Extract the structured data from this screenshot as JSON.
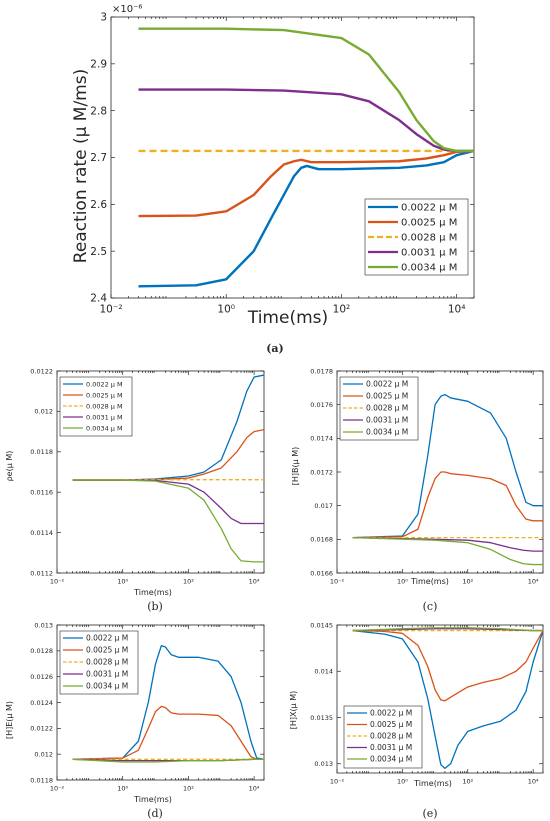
{
  "legend_entries": [
    "0.0022 μ M",
    "0.0025 μ M",
    "0.0028  μ M",
    "0.0031 μ M",
    "0.0034 μ M"
  ],
  "series_colors": [
    "#0072BD",
    "#D95319",
    "#EDB120",
    "#7E2F8E",
    "#77AC30"
  ],
  "chart_data": [
    {
      "panel": "a",
      "caption": "(a)",
      "type": "line",
      "xscale": "log",
      "xlim": [
        0.01,
        20000
      ],
      "ylim": [
        2.4,
        3.0
      ],
      "exponent_label": "×10⁻⁶",
      "xlabel": "Time(ms)",
      "ylabel": "Reaction rate (μ M/ms)",
      "xticks": [
        {
          "v": 0.01,
          "label": "10⁻²"
        },
        {
          "v": 1,
          "label": "10⁰"
        },
        {
          "v": 100,
          "label": "10²"
        },
        {
          "v": 10000,
          "label": "10⁴"
        }
      ],
      "yticks": [
        {
          "v": 2.4,
          "label": "2.4"
        },
        {
          "v": 2.5,
          "label": "2.5"
        },
        {
          "v": 2.6,
          "label": "2.6"
        },
        {
          "v": 2.7,
          "label": "2.7"
        },
        {
          "v": 2.8,
          "label": "2.8"
        },
        {
          "v": 2.9,
          "label": "2.9"
        },
        {
          "v": 3.0,
          "label": "3"
        }
      ],
      "legend_position": "bottom-right",
      "series": [
        {
          "name": "0.0022 μ M",
          "x": [
            0.03,
            0.3,
            1,
            3,
            6,
            10,
            15,
            20,
            25,
            40,
            100,
            1000,
            3000,
            6000,
            10000,
            20000
          ],
          "y": [
            2.425,
            2.427,
            2.44,
            2.5,
            2.57,
            2.62,
            2.66,
            2.678,
            2.682,
            2.675,
            2.675,
            2.678,
            2.683,
            2.69,
            2.705,
            2.714
          ]
        },
        {
          "name": "0.0025 μ M",
          "x": [
            0.03,
            0.3,
            1,
            3,
            6,
            10,
            15,
            20,
            30,
            100,
            1000,
            3000,
            6000,
            10000,
            20000
          ],
          "y": [
            2.575,
            2.576,
            2.585,
            2.62,
            2.66,
            2.685,
            2.692,
            2.695,
            2.69,
            2.69,
            2.692,
            2.698,
            2.705,
            2.712,
            2.714
          ]
        },
        {
          "name": "0.0028 μ M",
          "x": [
            0.03,
            20000
          ],
          "y": [
            2.714,
            2.714
          ]
        },
        {
          "name": "0.0031 μ M",
          "x": [
            0.03,
            1,
            10,
            100,
            300,
            1000,
            2000,
            4000,
            6000,
            10000,
            20000
          ],
          "y": [
            2.845,
            2.845,
            2.843,
            2.835,
            2.82,
            2.78,
            2.75,
            2.725,
            2.717,
            2.714,
            2.714
          ]
        },
        {
          "name": "0.0034 μ M",
          "x": [
            0.03,
            1,
            10,
            100,
            300,
            1000,
            2000,
            4000,
            6000,
            10000,
            20000
          ],
          "y": [
            2.975,
            2.975,
            2.972,
            2.955,
            2.92,
            2.84,
            2.78,
            2.735,
            2.72,
            2.714,
            2.714
          ]
        }
      ]
    },
    {
      "panel": "b",
      "caption": "(b)",
      "type": "line",
      "xscale": "log",
      "xlim": [
        0.01,
        20000
      ],
      "ylim": [
        0.0112,
        0.0122
      ],
      "xlabel": "Time(ms)",
      "ylabel": "ρe(μ M)",
      "xticks": [
        {
          "v": 0.01,
          "label": "10⁻²"
        },
        {
          "v": 1,
          "label": "10⁰"
        },
        {
          "v": 100,
          "label": "10²"
        },
        {
          "v": 10000,
          "label": "10⁴"
        }
      ],
      "yticks": [
        {
          "v": 0.0112,
          "label": "0.0112"
        },
        {
          "v": 0.0114,
          "label": "0.0114"
        },
        {
          "v": 0.0116,
          "label": "0.0116"
        },
        {
          "v": 0.0118,
          "label": "0.0118"
        },
        {
          "v": 0.012,
          "label": "0.012"
        },
        {
          "v": 0.0122,
          "label": "0.0122"
        }
      ],
      "legend_position": "top-left",
      "series": [
        {
          "name": "0.0022 μ M",
          "x": [
            0.03,
            1,
            10,
            100,
            300,
            1000,
            3000,
            6000,
            10000,
            20000
          ],
          "y": [
            0.01166,
            0.01166,
            0.011665,
            0.01168,
            0.0117,
            0.01176,
            0.01195,
            0.0121,
            0.01217,
            0.01218
          ]
        },
        {
          "name": "0.0025 μ M",
          "x": [
            0.03,
            1,
            10,
            100,
            300,
            1000,
            3000,
            6000,
            10000,
            20000
          ],
          "y": [
            0.01166,
            0.01166,
            0.011662,
            0.01167,
            0.01169,
            0.01172,
            0.0118,
            0.01187,
            0.0119,
            0.01191
          ]
        },
        {
          "name": "0.0028  μ M",
          "x": [
            0.03,
            20000
          ],
          "y": [
            0.011662,
            0.011662
          ]
        },
        {
          "name": "0.0031 μ M",
          "x": [
            0.03,
            1,
            10,
            100,
            300,
            1000,
            2000,
            4000,
            10000,
            20000
          ],
          "y": [
            0.01166,
            0.01166,
            0.011658,
            0.01164,
            0.0116,
            0.01152,
            0.01147,
            0.011445,
            0.011445,
            0.011445
          ]
        },
        {
          "name": "0.0034 μ M",
          "x": [
            0.03,
            1,
            10,
            100,
            300,
            1000,
            2000,
            4000,
            10000,
            20000
          ],
          "y": [
            0.01166,
            0.01166,
            0.011655,
            0.01162,
            0.01156,
            0.01142,
            0.01132,
            0.01126,
            0.011255,
            0.011255
          ]
        }
      ]
    },
    {
      "panel": "c",
      "caption": "(c)",
      "type": "line",
      "xscale": "log",
      "xlim": [
        0.01,
        20000
      ],
      "ylim": [
        0.0166,
        0.0178
      ],
      "xlabel": "Time(ms)",
      "ylabel": "[H]B(μ M)",
      "xticks": [
        {
          "v": 0.01,
          "label": "10⁻²"
        },
        {
          "v": 1,
          "label": "10⁰"
        },
        {
          "v": 100,
          "label": "10²"
        },
        {
          "v": 10000,
          "label": "10⁴"
        }
      ],
      "yticks": [
        {
          "v": 0.0166,
          "label": "0.0166"
        },
        {
          "v": 0.0168,
          "label": "0.0168"
        },
        {
          "v": 0.017,
          "label": "0.017"
        },
        {
          "v": 0.0172,
          "label": "0.0172"
        },
        {
          "v": 0.0174,
          "label": "0.0174"
        },
        {
          "v": 0.0176,
          "label": "0.0176"
        },
        {
          "v": 0.0178,
          "label": "0.0178"
        }
      ],
      "legend_position": "top-left",
      "series": [
        {
          "name": "0.0022 μ M",
          "x": [
            0.03,
            1,
            3,
            6,
            10,
            15,
            20,
            30,
            100,
            500,
            1500,
            3000,
            6000,
            10000,
            20000
          ],
          "y": [
            0.01681,
            0.01682,
            0.01695,
            0.0173,
            0.0176,
            0.01765,
            0.01766,
            0.01764,
            0.01762,
            0.01755,
            0.0174,
            0.0172,
            0.01702,
            0.017,
            0.017
          ]
        },
        {
          "name": "0.0025 μ M",
          "x": [
            0.03,
            1,
            3,
            6,
            10,
            15,
            20,
            30,
            100,
            500,
            1500,
            3000,
            6000,
            10000,
            20000
          ],
          "y": [
            0.01681,
            0.016815,
            0.01686,
            0.01705,
            0.01716,
            0.0172,
            0.0172,
            0.01719,
            0.01718,
            0.01716,
            0.01712,
            0.017,
            0.01692,
            0.01691,
            0.01691
          ]
        },
        {
          "name": "0.0028  μ M",
          "x": [
            0.03,
            20000
          ],
          "y": [
            0.01681,
            0.01681
          ]
        },
        {
          "name": "0.0031 μ M",
          "x": [
            0.03,
            10,
            100,
            500,
            2000,
            5000,
            10000,
            20000
          ],
          "y": [
            0.01681,
            0.0168,
            0.016795,
            0.01678,
            0.01675,
            0.016735,
            0.01673,
            0.01673
          ]
        },
        {
          "name": "0.0034 μ M",
          "x": [
            0.03,
            10,
            100,
            500,
            2000,
            5000,
            10000,
            20000
          ],
          "y": [
            0.01681,
            0.016795,
            0.01678,
            0.01674,
            0.01668,
            0.016655,
            0.01665,
            0.01665
          ]
        }
      ]
    },
    {
      "panel": "d",
      "caption": "(d)",
      "type": "line",
      "xscale": "log",
      "xlim": [
        0.01,
        20000
      ],
      "ylim": [
        0.0118,
        0.013
      ],
      "xlabel": "Time(ms)",
      "ylabel": "[H]E(μ M)",
      "xticks": [
        {
          "v": 0.01,
          "label": "10⁻²"
        },
        {
          "v": 1,
          "label": "10⁰"
        },
        {
          "v": 100,
          "label": "10²"
        },
        {
          "v": 10000,
          "label": "10⁴"
        }
      ],
      "yticks": [
        {
          "v": 0.0118,
          "label": "0.0118"
        },
        {
          "v": 0.012,
          "label": "0.012"
        },
        {
          "v": 0.0122,
          "label": "0.0122"
        },
        {
          "v": 0.0124,
          "label": "0.0124"
        },
        {
          "v": 0.0126,
          "label": "0.0126"
        },
        {
          "v": 0.0128,
          "label": "0.0128"
        },
        {
          "v": 0.013,
          "label": "0.013"
        }
      ],
      "legend_position": "top-left",
      "series": [
        {
          "name": "0.0022 μ M",
          "x": [
            0.03,
            1,
            3,
            6,
            10,
            15,
            20,
            30,
            50,
            200,
            800,
            2000,
            4000,
            8000,
            12000,
            20000
          ],
          "y": [
            0.01196,
            0.01197,
            0.0121,
            0.0124,
            0.0127,
            0.01284,
            0.01283,
            0.01277,
            0.01275,
            0.01275,
            0.01272,
            0.0126,
            0.0124,
            0.0121,
            0.01197,
            0.01196
          ]
        },
        {
          "name": "0.0025 μ M",
          "x": [
            0.03,
            1,
            3,
            6,
            10,
            15,
            20,
            30,
            50,
            200,
            800,
            2000,
            4000,
            8000,
            12000,
            20000
          ],
          "y": [
            0.01196,
            0.01197,
            0.01203,
            0.0122,
            0.01233,
            0.01237,
            0.01236,
            0.01232,
            0.01231,
            0.01231,
            0.0123,
            0.01222,
            0.0121,
            0.01198,
            0.01196,
            0.01196
          ]
        },
        {
          "name": "0.0028  μ M",
          "x": [
            0.03,
            20000
          ],
          "y": [
            0.01196,
            0.01196
          ]
        },
        {
          "name": "0.0031 μ M",
          "x": [
            0.03,
            1,
            10,
            100,
            1000,
            10000,
            20000
          ],
          "y": [
            0.01196,
            0.01195,
            0.01195,
            0.01195,
            0.01195,
            0.01196,
            0.01196
          ]
        },
        {
          "name": "0.0034 μ M",
          "x": [
            0.03,
            1,
            10,
            100,
            1000,
            10000,
            20000
          ],
          "y": [
            0.01196,
            0.01194,
            0.01194,
            0.01195,
            0.01195,
            0.01196,
            0.01196
          ]
        }
      ]
    },
    {
      "panel": "e",
      "caption": "(e)",
      "type": "line",
      "xscale": "log",
      "xlim": [
        0.01,
        20000
      ],
      "ylim": [
        0.0129,
        0.0145
      ],
      "xlabel": "Time(ms)",
      "ylabel": "[H]X(μ M)",
      "xticks": [
        {
          "v": 0.01,
          "label": "10⁻²"
        },
        {
          "v": 1,
          "label": "10⁰"
        },
        {
          "v": 100,
          "label": "10²"
        },
        {
          "v": 10000,
          "label": "10⁴"
        }
      ],
      "yticks": [
        {
          "v": 0.013,
          "label": "0.013"
        },
        {
          "v": 0.0135,
          "label": "0.0135"
        },
        {
          "v": 0.014,
          "label": "0.014"
        },
        {
          "v": 0.0145,
          "label": "0.0145"
        }
      ],
      "legend_position": "bottom-left",
      "series": [
        {
          "name": "0.0022 μ M",
          "x": [
            0.03,
            0.3,
            1,
            3,
            6,
            10,
            15,
            20,
            30,
            50,
            100,
            300,
            1000,
            3000,
            6000,
            10000,
            20000
          ],
          "y": [
            0.01444,
            0.0144,
            0.01435,
            0.0141,
            0.0137,
            0.0133,
            0.01299,
            0.01295,
            0.013,
            0.0132,
            0.01335,
            0.01341,
            0.01346,
            0.01358,
            0.01378,
            0.0141,
            0.01444
          ]
        },
        {
          "name": "0.0025 μ M",
          "x": [
            0.03,
            0.3,
            1,
            3,
            6,
            10,
            15,
            20,
            30,
            100,
            300,
            1000,
            3000,
            6000,
            10000,
            20000
          ],
          "y": [
            0.01444,
            0.01443,
            0.01441,
            0.01428,
            0.01405,
            0.0138,
            0.01369,
            0.01368,
            0.01372,
            0.01383,
            0.01388,
            0.01392,
            0.014,
            0.0141,
            0.01425,
            0.01444
          ]
        },
        {
          "name": "0.0028  μ M",
          "x": [
            0.03,
            20000
          ],
          "y": [
            0.01444,
            0.01444
          ]
        },
        {
          "name": "0.0031 μ M",
          "x": [
            0.03,
            1,
            10,
            100,
            1000,
            10000,
            20000
          ],
          "y": [
            0.01444,
            0.01445,
            0.01446,
            0.01446,
            0.01445,
            0.01444,
            0.01444
          ]
        },
        {
          "name": "0.0034 μ M",
          "x": [
            0.03,
            1,
            10,
            100,
            1000,
            10000,
            20000
          ],
          "y": [
            0.01444,
            0.01446,
            0.01447,
            0.01447,
            0.01446,
            0.01444,
            0.01444
          ]
        }
      ]
    }
  ]
}
